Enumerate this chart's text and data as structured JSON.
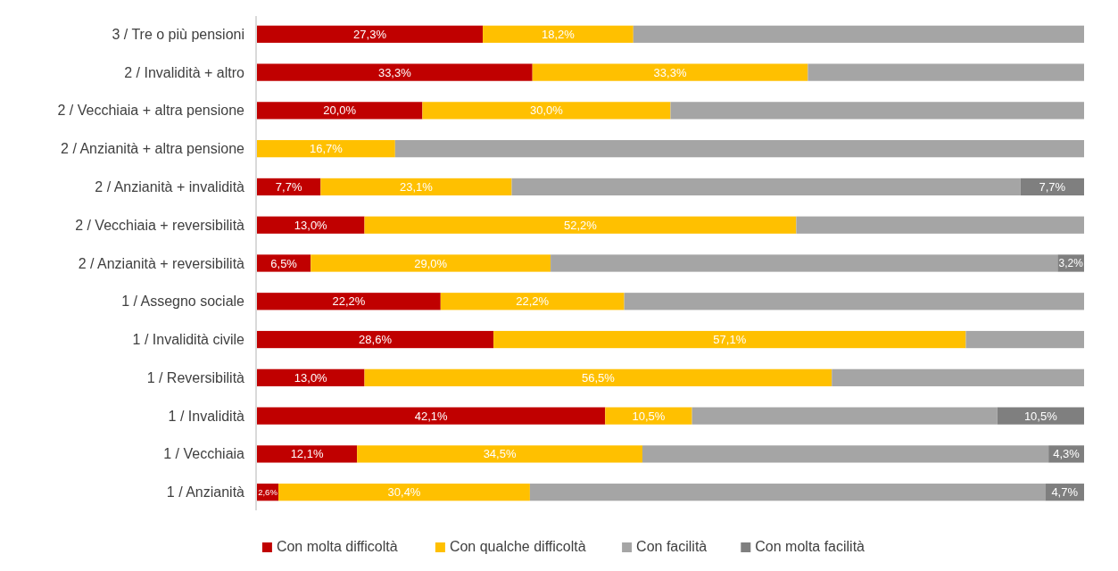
{
  "chart_data": {
    "type": "bar",
    "orientation": "horizontal",
    "stacked": true,
    "legend": "bottom",
    "tick_labels": "y",
    "xlim": [
      0,
      100
    ],
    "categories": [
      "3 / Tre o più pensioni",
      "2 / Invalidità + altro",
      "2 / Vecchiaia + altra pensione",
      "2 / Anzianità + altra pensione",
      "2 / Anzianità + invalidità",
      "2 / Vecchiaia + reversibilità",
      "2 / Anzianità + reversibilità",
      "1 / Assegno sociale",
      "1 / Invalidità civile",
      "1 / Reversibilità",
      "1 / Invalidità",
      "1 / Vecchiaia",
      "1 / Anzianità"
    ],
    "series": [
      {
        "name": "Con molta difficoltà",
        "color": "#c00000",
        "values": [
          27.3,
          33.3,
          20.0,
          0,
          7.7,
          13.0,
          6.5,
          22.2,
          28.6,
          13.0,
          42.1,
          12.1,
          2.6
        ],
        "value_labels": [
          "27,3%",
          "33,3%",
          "20,0%",
          null,
          "7,7%",
          "13,0%",
          "6,5%",
          "22,2%",
          "28,6%",
          "13,0%",
          "42,1%",
          "12,1%",
          "2,6%"
        ]
      },
      {
        "name": "Con qualche difficoltà",
        "color": "#ffc000",
        "values": [
          18.2,
          33.3,
          30.0,
          16.7,
          23.1,
          52.2,
          29.0,
          22.2,
          57.1,
          56.5,
          10.5,
          34.5,
          30.4
        ],
        "value_labels": [
          "18,2%",
          "33,3%",
          "30,0%",
          "16,7%",
          "23,1%",
          "52,2%",
          "29,0%",
          "22,2%",
          "57,1%",
          "56,5%",
          "10,5%",
          "34,5%",
          "30,4%"
        ]
      },
      {
        "name": "Con facilità",
        "color": "#a5a5a5",
        "values": [
          54.5,
          33.4,
          50.0,
          83.3,
          61.5,
          34.8,
          61.3,
          55.6,
          14.3,
          30.5,
          36.9,
          49.1,
          62.3
        ],
        "value_labels": [
          null,
          null,
          null,
          null,
          null,
          null,
          null,
          null,
          null,
          null,
          null,
          null,
          null
        ]
      },
      {
        "name": "Con molta facilità",
        "color": "#7f7f7f",
        "values": [
          0,
          0,
          0,
          0,
          7.7,
          0,
          3.2,
          0,
          0,
          0,
          10.5,
          4.3,
          4.7
        ],
        "value_labels": [
          null,
          null,
          null,
          null,
          "7,7%",
          null,
          "3,2%",
          null,
          null,
          null,
          "10,5%",
          "4,3%",
          "4,7%"
        ]
      }
    ]
  }
}
